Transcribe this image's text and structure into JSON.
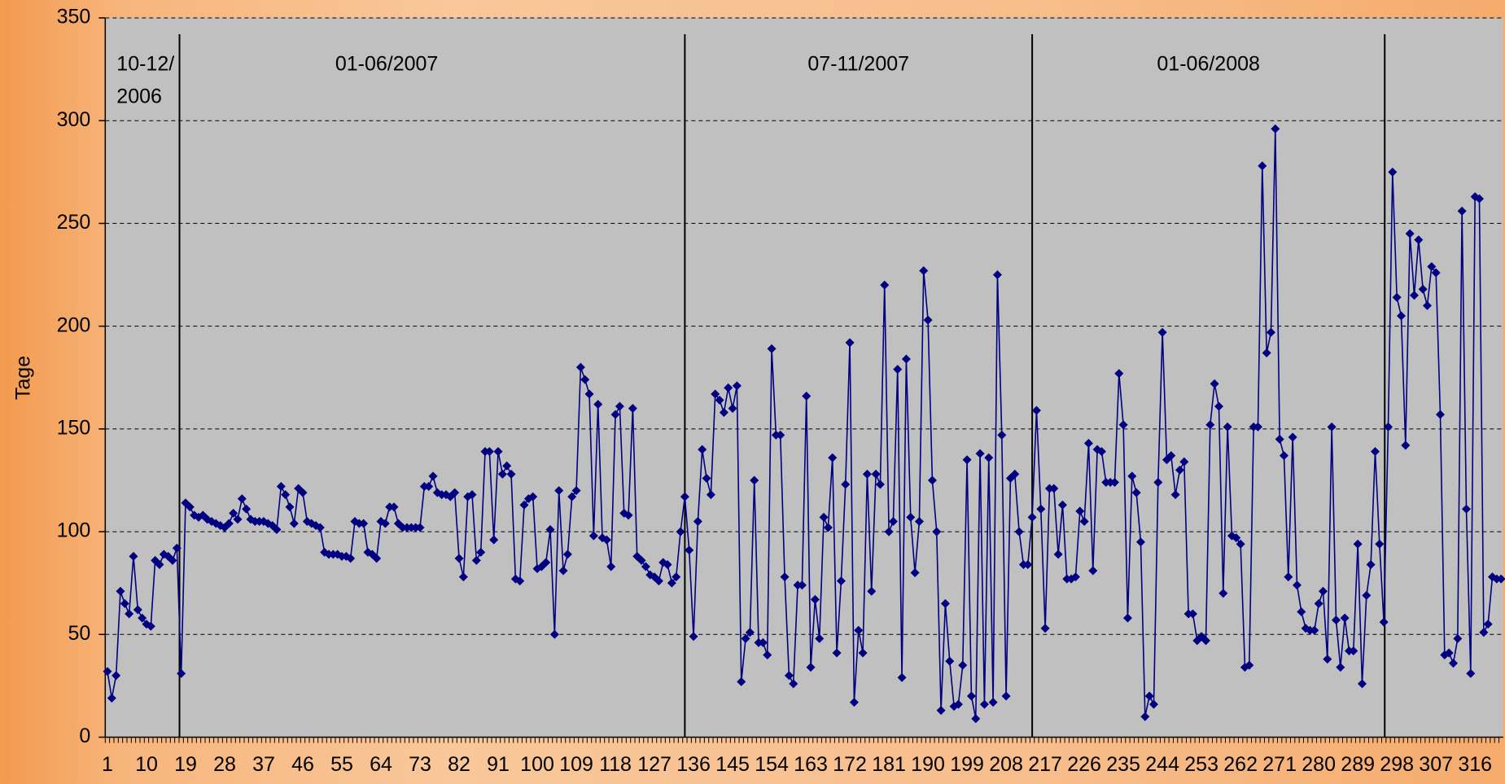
{
  "chart_data": {
    "type": "line",
    "ylabel": "Tage",
    "color": "#000080",
    "marker": "diamond",
    "ylim": [
      0,
      350
    ],
    "yticks": [
      0,
      50,
      100,
      150,
      200,
      250,
      300,
      350
    ],
    "grid": true,
    "categories": [
      "1",
      null,
      null,
      null,
      null,
      null,
      null,
      null,
      null,
      "10",
      null,
      null,
      null,
      null,
      null,
      null,
      null,
      null,
      "19",
      null,
      null,
      null,
      null,
      null,
      null,
      null,
      null,
      "28",
      null,
      null,
      null,
      null,
      null,
      null,
      null,
      null,
      "37",
      null,
      null,
      null,
      null,
      null,
      null,
      null,
      null,
      "46",
      null,
      null,
      null,
      null,
      null,
      null,
      null,
      null,
      "55",
      null,
      null,
      null,
      null,
      null,
      null,
      null,
      null,
      "64",
      null,
      null,
      null,
      null,
      null,
      null,
      null,
      null,
      "73",
      null,
      null,
      null,
      null,
      null,
      null,
      null,
      null,
      "82",
      null,
      null,
      null,
      null,
      null,
      null,
      null,
      null,
      "91",
      null,
      null,
      null,
      null,
      null,
      null,
      null,
      null,
      "100",
      null,
      null,
      null,
      null,
      null,
      null,
      null,
      null,
      "109",
      null,
      null,
      null,
      null,
      null,
      null,
      null,
      null,
      "118",
      null,
      null,
      null,
      null,
      null,
      null,
      null,
      null,
      "127",
      null,
      null,
      null,
      null,
      null,
      null,
      null,
      null,
      "136",
      null,
      null,
      null,
      null,
      null,
      null,
      null,
      null,
      "145",
      null,
      null,
      null,
      null,
      null,
      null,
      null,
      null,
      "154",
      null,
      null,
      null,
      null,
      null,
      null,
      null,
      null,
      "163",
      null,
      null,
      null,
      null,
      null,
      null,
      null,
      null,
      "172",
      null,
      null,
      null,
      null,
      null,
      null,
      null,
      null,
      "181",
      null,
      null,
      null,
      null,
      null,
      null,
      null,
      null,
      "190",
      null,
      null,
      null,
      null,
      null,
      null,
      null,
      null,
      "199",
      null,
      null,
      null,
      null,
      null,
      null,
      null,
      null,
      "208",
      null,
      null,
      null,
      null,
      null,
      null,
      null,
      null,
      "217",
      null,
      null,
      null,
      null,
      null,
      null,
      null,
      null,
      "226",
      null,
      null,
      null,
      null,
      null,
      null,
      null,
      null,
      "235",
      null,
      null,
      null,
      null,
      null,
      null,
      null,
      null,
      "244",
      null,
      null,
      null,
      null,
      null,
      null,
      null,
      null,
      "253",
      null,
      null,
      null,
      null,
      null,
      null,
      null,
      null,
      "262",
      null,
      null,
      null,
      null,
      null,
      null,
      null,
      null,
      "271",
      null,
      null,
      null,
      null,
      null,
      null,
      null,
      null,
      "280",
      null,
      null,
      null,
      null,
      null,
      null,
      null,
      null,
      "289",
      null,
      null,
      null,
      null,
      null,
      null,
      null,
      null,
      "298",
      null,
      null,
      null,
      null,
      null,
      null,
      null,
      null,
      "307",
      null,
      null,
      null,
      null,
      null,
      null,
      null,
      null,
      "316",
      null,
      null,
      null,
      null,
      null,
      null
    ],
    "values": [
      32,
      19,
      30,
      71,
      65,
      60,
      88,
      62,
      58,
      55,
      54,
      86,
      84,
      89,
      88,
      86,
      92,
      31,
      114,
      112,
      108,
      107,
      108,
      106,
      105,
      104,
      103,
      102,
      104,
      109,
      106,
      116,
      111,
      106,
      105,
      105,
      105,
      104,
      103,
      101,
      122,
      118,
      112,
      104,
      121,
      119,
      105,
      104,
      103,
      102,
      90,
      89,
      89,
      89,
      88,
      88,
      87,
      105,
      104,
      104,
      90,
      89,
      87,
      105,
      104,
      112,
      112,
      104,
      102,
      102,
      102,
      102,
      102,
      122,
      122,
      127,
      119,
      118,
      118,
      117,
      119,
      87,
      78,
      117,
      118,
      86,
      90,
      139,
      139,
      96,
      139,
      128,
      132,
      128,
      77,
      76,
      113,
      116,
      117,
      82,
      83,
      85,
      101,
      50,
      120,
      81,
      89,
      117,
      120,
      180,
      174,
      167,
      98,
      162,
      97,
      96,
      83,
      157,
      161,
      109,
      108,
      160,
      88,
      86,
      83,
      79,
      78,
      76,
      85,
      84,
      75,
      78,
      100,
      117,
      91,
      49,
      105,
      140,
      126,
      118,
      167,
      164,
      158,
      170,
      160,
      171,
      27,
      48,
      51,
      125,
      46,
      46,
      40,
      189,
      147,
      147,
      78,
      30,
      26,
      74,
      74,
      166,
      34,
      67,
      48,
      107,
      102,
      136,
      41,
      76,
      123,
      192,
      17,
      52,
      41,
      128,
      71,
      128,
      123,
      220,
      100,
      105,
      179,
      29,
      184,
      107,
      80,
      105,
      227,
      203,
      125,
      100,
      13,
      65,
      37,
      15,
      16,
      35,
      135,
      20,
      9,
      138,
      16,
      136,
      17,
      225,
      147,
      20,
      126,
      128,
      100,
      84,
      84,
      107,
      159,
      111,
      53,
      121,
      121,
      89,
      113,
      77,
      77,
      78,
      110,
      105,
      143,
      81,
      140,
      139,
      124,
      124,
      124,
      177,
      152,
      58,
      127,
      119,
      95,
      10,
      20,
      16,
      124,
      197,
      135,
      137,
      118,
      130,
      134,
      60,
      60,
      47,
      49,
      47,
      152,
      172,
      161,
      70,
      151,
      98,
      97,
      94,
      34,
      35,
      151,
      151,
      278,
      187,
      197,
      296,
      145,
      137,
      78,
      146,
      74,
      61,
      53,
      52,
      52,
      65,
      71,
      38,
      151,
      57,
      34,
      58,
      42,
      42,
      94,
      26,
      69,
      84,
      139,
      94,
      56,
      151,
      275,
      214,
      205,
      142,
      245,
      215,
      242,
      218,
      210,
      229,
      226,
      157,
      40,
      41,
      36,
      48,
      256,
      111,
      31,
      263,
      262,
      51,
      55,
      78,
      77,
      77
    ],
    "dividers": [
      17.6,
      134,
      214,
      295.2
    ],
    "annotations": [
      [
        "10-12/",
        "2006"
      ],
      [
        "01-06/2007"
      ],
      [
        "07-11/2007"
      ],
      [
        "01-06/2008"
      ]
    ]
  }
}
